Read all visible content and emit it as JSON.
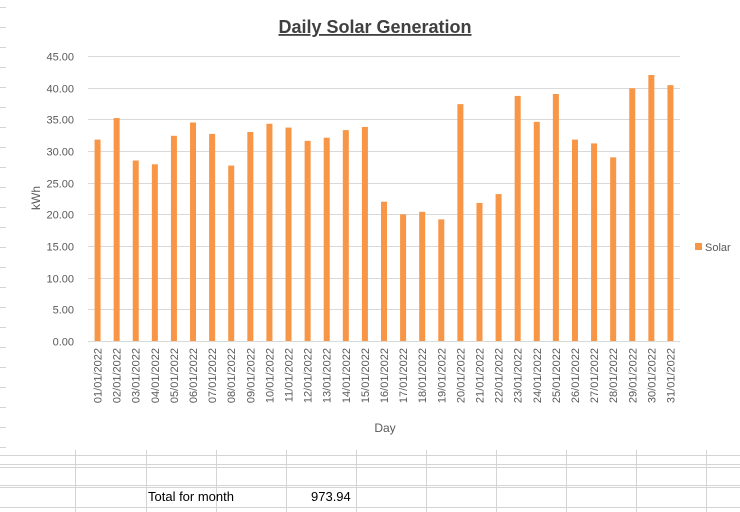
{
  "sheet": {
    "total_label": "Total for month",
    "total_value": "973.94"
  },
  "colors": {
    "bar": "#F79646",
    "gridline": "#D9D9D9",
    "axis_text": "#595959",
    "title_text": "#404040",
    "cell_border": "#D4D4D4"
  },
  "chart_data": {
    "type": "bar",
    "title": "Daily Solar Generation",
    "xlabel": "Day",
    "ylabel": "kWh",
    "ylim": [
      0,
      45
    ],
    "ytick_step": 5,
    "ytick_labels": [
      "0.00",
      "5.00",
      "10.00",
      "15.00",
      "20.00",
      "25.00",
      "30.00",
      "35.00",
      "40.00",
      "45.00"
    ],
    "grid": true,
    "legend_position": "right",
    "categories": [
      "01/01/2022",
      "02/01/2022",
      "03/01/2022",
      "04/01/2022",
      "05/01/2022",
      "06/01/2022",
      "07/01/2022",
      "08/01/2022",
      "09/01/2022",
      "10/01/2022",
      "11/01/2022",
      "12/01/2022",
      "13/01/2022",
      "14/01/2022",
      "15/01/2022",
      "16/01/2022",
      "17/01/2022",
      "18/01/2022",
      "19/01/2022",
      "20/01/2022",
      "21/01/2022",
      "22/01/2022",
      "23/01/2022",
      "24/01/2022",
      "25/01/2022",
      "26/01/2022",
      "27/01/2022",
      "28/01/2022",
      "29/01/2022",
      "30/01/2022",
      "31/01/2022"
    ],
    "series": [
      {
        "name": "Solar",
        "values": [
          31.8,
          35.2,
          28.5,
          27.9,
          32.4,
          34.5,
          32.7,
          27.7,
          33.0,
          34.3,
          33.7,
          31.6,
          32.1,
          33.3,
          33.8,
          22.0,
          20.0,
          20.4,
          19.2,
          37.4,
          21.8,
          23.2,
          38.7,
          34.6,
          39.0,
          31.8,
          31.2,
          29.0,
          39.9,
          42.0,
          40.4
        ]
      }
    ]
  }
}
